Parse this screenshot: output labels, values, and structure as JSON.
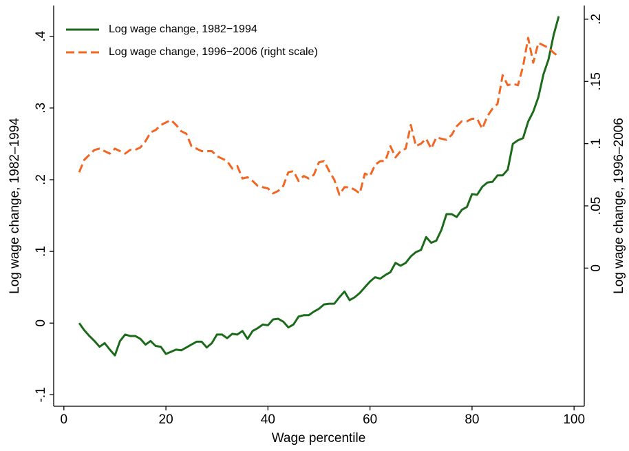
{
  "chart_data": {
    "type": "line",
    "x_label": "Wage percentile",
    "y_label": "Log wage change, 1982–1994",
    "y2_label": "Log wage change, 1996–2006",
    "xlim": [
      -2,
      102
    ],
    "xticks": [
      0,
      20,
      40,
      60,
      80,
      100
    ],
    "ylim": [
      -0.116,
      0.443
    ],
    "yticks": [
      {
        "value": -0.1,
        "label": "-.1"
      },
      0,
      {
        "value": 0.1,
        "label": ".1"
      },
      {
        "value": 0.2,
        "label": ".2"
      },
      {
        "value": 0.3,
        "label": ".3"
      },
      {
        "value": 0.4,
        "label": ".4"
      }
    ],
    "y2lim": [
      -0.111,
      0.211
    ],
    "y2ticks": [
      0,
      {
        "value": 0.05,
        "label": ".05"
      },
      {
        "value": 0.1,
        "label": ".1"
      },
      {
        "value": 0.15,
        "label": ".15"
      },
      {
        "value": 0.2,
        "label": ".2"
      }
    ],
    "legend": "top-left",
    "x": [
      3,
      4,
      5,
      6,
      7,
      8,
      9,
      10,
      11,
      12,
      13,
      14,
      15,
      16,
      17,
      18,
      19,
      20,
      21,
      22,
      23,
      24,
      25,
      26,
      27,
      28,
      29,
      30,
      31,
      32,
      33,
      34,
      35,
      36,
      37,
      38,
      39,
      40,
      41,
      42,
      43,
      44,
      45,
      46,
      47,
      48,
      49,
      50,
      51,
      52,
      53,
      54,
      55,
      56,
      57,
      58,
      59,
      60,
      61,
      62,
      63,
      64,
      65,
      66,
      67,
      68,
      69,
      70,
      71,
      72,
      73,
      74,
      75,
      76,
      77,
      78,
      79,
      80,
      81,
      82,
      83,
      84,
      85,
      86,
      87,
      88,
      89,
      90,
      91,
      92,
      93,
      94,
      95,
      96,
      97
    ],
    "series": [
      {
        "name": "Log wage change, 1982−1994",
        "color": "#1b6b1b",
        "dashed": false,
        "values": [
          0,
          -0.01,
          -0.018,
          -0.025,
          -0.033,
          -0.028,
          -0.037,
          -0.045,
          -0.025,
          -0.016,
          -0.018,
          -0.018,
          -0.022,
          -0.03,
          -0.025,
          -0.032,
          -0.033,
          -0.043,
          -0.04,
          -0.037,
          -0.038,
          -0.034,
          -0.03,
          -0.026,
          -0.026,
          -0.034,
          -0.028,
          -0.016,
          -0.016,
          -0.021,
          -0.015,
          -0.016,
          -0.011,
          -0.022,
          -0.011,
          -0.007,
          -0.002,
          -0.003,
          0.005,
          0.006,
          0.002,
          -0.006,
          -0.002,
          0.009,
          0.011,
          0.011,
          0.016,
          0.02,
          0.026,
          0.027,
          0.027,
          0.036,
          0.044,
          0.032,
          0.036,
          0.042,
          0.05,
          0.058,
          0.064,
          0.062,
          0.067,
          0.071,
          0.084,
          0.08,
          0.084,
          0.093,
          0.099,
          0.102,
          0.12,
          0.112,
          0.115,
          0.13,
          0.152,
          0.152,
          0.148,
          0.158,
          0.162,
          0.18,
          0.179,
          0.19,
          0.196,
          0.197,
          0.206,
          0.206,
          0.214,
          0.25,
          0.255,
          0.258,
          0.281,
          0.295,
          0.315,
          0.347,
          0.368,
          0.402,
          0.428
        ]
      },
      {
        "name": "Log wage change, 1996−2006 (right scale)",
        "color": "#f26522",
        "dashed": true,
        "axis": "y2",
        "values": [
          0.077,
          0.087,
          0.091,
          0.095,
          0.096,
          0.094,
          0.092,
          0.096,
          0.094,
          0.092,
          0.095,
          0.095,
          0.097,
          0.102,
          0.109,
          0.111,
          0.115,
          0.117,
          0.119,
          0.115,
          0.11,
          0.108,
          0.098,
          0.096,
          0.094,
          0.094,
          0.094,
          0.09,
          0.088,
          0.086,
          0.08,
          0.082,
          0.072,
          0.073,
          0.07,
          0.066,
          0.065,
          0.064,
          0.06,
          0.062,
          0.066,
          0.077,
          0.078,
          0.07,
          0.074,
          0.072,
          0.075,
          0.085,
          0.086,
          0.078,
          0.071,
          0.059,
          0.065,
          0.065,
          0.063,
          0.06,
          0.076,
          0.074,
          0.083,
          0.086,
          0.086,
          0.098,
          0.089,
          0.094,
          0.096,
          0.115,
          0.098,
          0.1,
          0.104,
          0.096,
          0.105,
          0.104,
          0.103,
          0.107,
          0.114,
          0.118,
          0.118,
          0.12,
          0.12,
          0.112,
          0.122,
          0.128,
          0.132,
          0.155,
          0.147,
          0.148,
          0.147,
          0.162,
          0.185,
          0.165,
          0.181,
          0.179,
          0.177,
          0.173,
          0.17
        ]
      }
    ]
  }
}
